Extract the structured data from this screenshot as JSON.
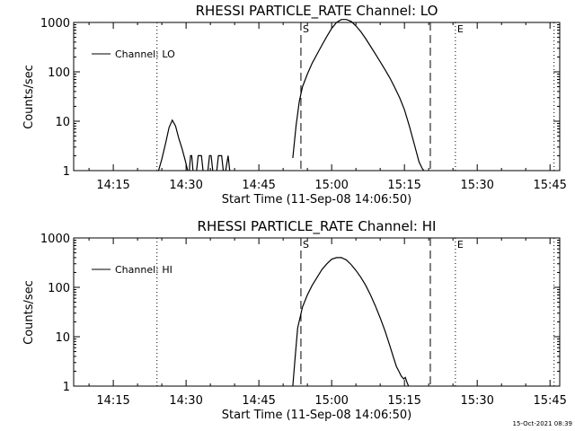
{
  "chart_data": [
    {
      "type": "line",
      "title": "RHESSI PARTICLE_RATE Channel: LO",
      "xlabel": "Start Time (11-Sep-08 14:06:50)",
      "ylabel": "Counts/sec",
      "yscale": "log",
      "ylim": [
        1,
        1000
      ],
      "xlim_minutes": [
        "14:06:50",
        "15:47:00"
      ],
      "x_ticks": [
        "14:15",
        "14:30",
        "14:45",
        "15:00",
        "15:15",
        "15:30",
        "15:45"
      ],
      "y_ticks": [
        "1",
        "10",
        "100",
        "1000"
      ],
      "legend": "Channel: LO",
      "legend_position": "top-left",
      "markers": {
        "S": "S",
        "E": "E"
      },
      "dotted_lines": [
        "14:24:00",
        "15:25:30",
        "15:45:50"
      ],
      "dashed_lines": [
        "14:53:40",
        "15:20:20"
      ],
      "series": [
        {
          "name": "Channel: LO",
          "segments": [
            {
              "x": [
                "14:24:20",
                "14:25:00",
                "14:25:45",
                "14:26:30",
                "14:27:10",
                "14:27:50",
                "14:28:30",
                "14:29:10",
                "14:29:50",
                "14:30:20"
              ],
              "y": [
                1,
                1.7,
                3.5,
                7.5,
                10.5,
                8,
                4.5,
                2.8,
                1.6,
                1
              ]
            },
            {
              "x": [
                "14:30:40",
                "14:30:55",
                "14:31:10",
                "14:31:25"
              ],
              "y": [
                1,
                2,
                2,
                1
              ]
            },
            {
              "x": [
                "14:32:10",
                "14:32:30",
                "14:32:50",
                "14:33:10",
                "14:33:30"
              ],
              "y": [
                1,
                2,
                2,
                2,
                1
              ]
            },
            {
              "x": [
                "14:34:30",
                "14:34:50",
                "14:35:10",
                "14:35:30"
              ],
              "y": [
                1,
                2,
                2,
                1
              ]
            },
            {
              "x": [
                "14:36:20",
                "14:36:40",
                "14:37:00",
                "14:37:20",
                "14:37:40"
              ],
              "y": [
                1,
                2,
                2,
                2,
                1
              ]
            },
            {
              "x": [
                "14:38:10",
                "14:38:40",
                "14:39:00"
              ],
              "y": [
                1,
                2,
                1
              ]
            },
            {
              "x": [
                "14:52:00",
                "14:52:40",
                "14:53:20",
                "14:54:00",
                "14:55:00",
                "14:56:00",
                "14:57:00",
                "14:58:00",
                "14:59:00",
                "15:00:00",
                "15:01:00",
                "15:02:00",
                "15:03:00",
                "15:04:00",
                "15:05:00",
                "15:06:00",
                "15:07:00",
                "15:08:00",
                "15:09:00",
                "15:10:00",
                "15:11:00",
                "15:12:00",
                "15:13:00",
                "15:14:00",
                "15:15:00",
                "15:16:00",
                "15:17:00",
                "15:18:00",
                "15:18:40",
                "15:19:00"
              ],
              "y": [
                1.8,
                8,
                25,
                50,
                90,
                150,
                230,
                350,
                520,
                760,
                1000,
                1150,
                1150,
                1050,
                850,
                650,
                470,
                330,
                230,
                160,
                110,
                75,
                48,
                30,
                17,
                8,
                3.5,
                1.5,
                1.1,
                1
              ]
            }
          ]
        }
      ]
    },
    {
      "type": "line",
      "title": "RHESSI PARTICLE_RATE Channel: HI",
      "xlabel": "Start Time (11-Sep-08 14:06:50)",
      "ylabel": "Counts/sec",
      "yscale": "log",
      "ylim": [
        1,
        1000
      ],
      "xlim_minutes": [
        "14:06:50",
        "15:47:00"
      ],
      "x_ticks": [
        "14:15",
        "14:30",
        "14:45",
        "15:00",
        "15:15",
        "15:30",
        "15:45"
      ],
      "y_ticks": [
        "1",
        "10",
        "100",
        "1000"
      ],
      "legend": "Channel: HI",
      "legend_position": "top-left",
      "markers": {
        "S": "S",
        "E": "E"
      },
      "dotted_lines": [
        "14:24:00",
        "15:25:30",
        "15:45:50"
      ],
      "dashed_lines": [
        "14:53:40",
        "15:20:20"
      ],
      "series": [
        {
          "name": "Channel: HI",
          "segments": [
            {
              "x": [
                "14:52:00",
                "14:52:30",
                "14:53:00",
                "14:54:00",
                "14:55:00",
                "14:56:00",
                "14:57:00",
                "14:58:00",
                "14:59:00",
                "15:00:00",
                "15:01:00",
                "15:02:00",
                "15:03:00",
                "15:04:00",
                "15:05:00",
                "15:06:00",
                "15:07:00",
                "15:08:00",
                "15:09:00",
                "15:10:00",
                "15:11:00",
                "15:12:00",
                "15:12:40",
                "15:13:20",
                "15:13:50",
                "15:14:20",
                "15:14:50",
                "15:15:10",
                "15:15:30",
                "15:15:50"
              ],
              "y": [
                1,
                4,
                15,
                40,
                70,
                110,
                160,
                230,
                300,
                370,
                400,
                400,
                360,
                290,
                220,
                160,
                110,
                70,
                42,
                24,
                13,
                6.5,
                4,
                2.5,
                2,
                1.6,
                1.4,
                1.5,
                1.2,
                1
              ]
            }
          ]
        }
      ]
    }
  ],
  "footer": {
    "timestamp": "15-Oct-2021 08:39"
  }
}
